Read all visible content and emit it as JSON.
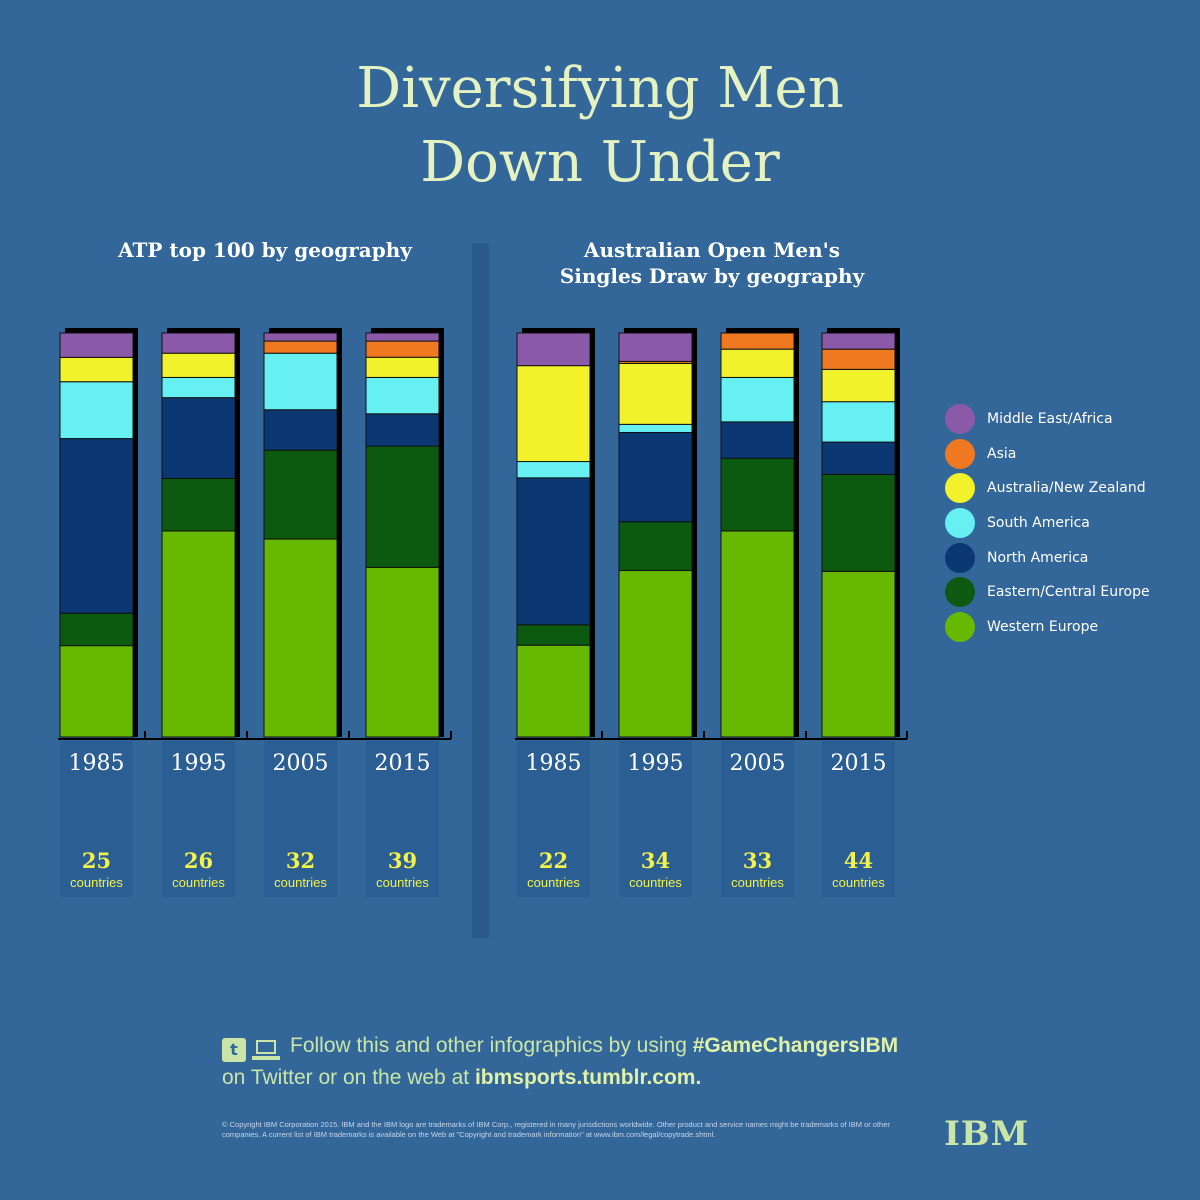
{
  "title": {
    "line1": "Diversifying Men",
    "line2": "Down Under"
  },
  "colors": {
    "background": "#336699",
    "Middle East/Africa": "#8a5aa8",
    "Asia": "#f07820",
    "Australia/New Zealand": "#f2f22c",
    "South America": "#66f0f2",
    "North America": "#0b3872",
    "Eastern/Central Europe": "#0b5a10",
    "Western Europe": "#66b800"
  },
  "chart_data": [
    {
      "type": "bar",
      "stacked": true,
      "title": "ATP top 100 by geography",
      "categories": [
        "1985",
        "1995",
        "2005",
        "2015"
      ],
      "countries": [
        "25",
        "26",
        "32",
        "39"
      ],
      "countries_label": "countries",
      "series": [
        {
          "name": "Western Europe",
          "values": [
            22.5,
            51,
            49,
            42
          ]
        },
        {
          "name": "Eastern/Central Europe",
          "values": [
            8,
            13,
            22,
            30
          ]
        },
        {
          "name": "North America",
          "values": [
            43,
            20,
            10,
            8
          ]
        },
        {
          "name": "South America",
          "values": [
            14,
            5,
            14,
            9
          ]
        },
        {
          "name": "Australia/New Zealand",
          "values": [
            6,
            6,
            0,
            5
          ]
        },
        {
          "name": "Asia",
          "values": [
            0,
            0,
            3,
            4
          ]
        },
        {
          "name": "Middle East/Africa",
          "values": [
            6,
            5,
            2,
            2
          ]
        }
      ],
      "ylim": [
        0,
        100
      ]
    },
    {
      "type": "bar",
      "stacked": true,
      "title": "Australian Open Men's Singles Draw by geography",
      "title_lines": [
        "Australian Open Men's",
        "Singles Draw by geography"
      ],
      "categories": [
        "1985",
        "1995",
        "2005",
        "2015"
      ],
      "countries": [
        "22",
        "34",
        "33",
        "44"
      ],
      "countries_label": "countries",
      "series": [
        {
          "name": "Western Europe",
          "values": [
            22.5,
            41,
            51,
            41
          ]
        },
        {
          "name": "Eastern/Central Europe",
          "values": [
            5,
            12,
            18,
            24
          ]
        },
        {
          "name": "North America",
          "values": [
            36,
            22,
            9,
            8
          ]
        },
        {
          "name": "South America",
          "values": [
            4,
            2,
            11,
            10
          ]
        },
        {
          "name": "Australia/New Zealand",
          "values": [
            23.5,
            15,
            7,
            8
          ]
        },
        {
          "name": "Asia",
          "values": [
            0,
            0.5,
            4,
            5
          ]
        },
        {
          "name": "Middle East/Africa",
          "values": [
            8,
            7,
            0,
            4
          ]
        }
      ],
      "ylim": [
        0,
        100
      ]
    }
  ],
  "legend": {
    "items": [
      "Middle East/Africa",
      "Asia",
      "Australia/New Zealand",
      "South America",
      "North America",
      "Eastern/Central Europe",
      "Western Europe"
    ]
  },
  "footer": {
    "line1_prefix": "Follow this and other infographics by using ",
    "hashtag": "#GameChangersIBM",
    "line2_prefix": "on Twitter or on the web at ",
    "url": "ibmsports.tumblr.com."
  },
  "copyright": "© Copyright IBM Corporation 2015. IBM and the IBM logo are trademarks of IBM Corp., registered in many jurisdictions worldwide. Other product and service names might be trademarks of IBM or other companies. A current list of IBM trademarks is available on the Web at \"Copyright and trademark information\" at www.ibm.com/legal/copytrade.shtml.",
  "brand": "IBM"
}
